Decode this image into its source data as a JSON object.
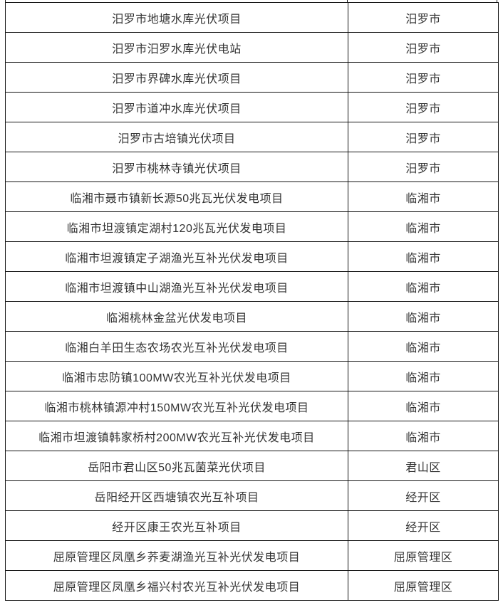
{
  "colors": {
    "background": "#ffffff",
    "border": "#151515",
    "text": "#333333"
  },
  "table": {
    "columns": [
      {
        "key": "project",
        "label": ""
      },
      {
        "key": "region",
        "label": ""
      }
    ],
    "rows": [
      {
        "project": "汨罗市地塘水库光伏项目",
        "region": "汨罗市"
      },
      {
        "project": "汨罗市汨罗水库光伏电站",
        "region": "汨罗市"
      },
      {
        "project": "汨罗市界碑水库光伏项目",
        "region": "汨罗市"
      },
      {
        "project": "汨罗市道冲水库光伏项目",
        "region": "汨罗市"
      },
      {
        "project": "汨罗市古培镇光伏项目",
        "region": "汨罗市"
      },
      {
        "project": "汨罗市桃林寺镇光伏项目",
        "region": "汨罗市"
      },
      {
        "project": "临湘市聂市镇新长源50兆瓦光伏发电项目",
        "region": "临湘市"
      },
      {
        "project": "临湘市坦渡镇定湖村120兆瓦光伏发电项目",
        "region": "临湘市"
      },
      {
        "project": "临湘市坦渡镇定子湖渔光互补光伏发电项目",
        "region": "临湘市"
      },
      {
        "project": "临湘市坦渡镇中山湖渔光互补光伏发电项目",
        "region": "临湘市"
      },
      {
        "project": "临湘桃林金盆光伏发电项目",
        "region": "临湘市"
      },
      {
        "project": "临湘白羊田生态农场农光互补光伏发电项目",
        "region": "临湘市"
      },
      {
        "project": "临湘市忠防镇100MW农光互补光伏发电项目",
        "region": "临湘市"
      },
      {
        "project": "临湘市桃林镇源冲村150MW农光互补光伏发电项目",
        "region": "临湘市"
      },
      {
        "project": "临湘市坦渡镇韩家桥村200MW农光互补光伏发电项目",
        "region": "临湘市"
      },
      {
        "project": "岳阳市君山区50兆瓦菌菜光伏项目",
        "region": "君山区"
      },
      {
        "project": "岳阳经开区西塘镇农光互补项目",
        "region": "经开区"
      },
      {
        "project": "经开区康王农光互补项目",
        "region": "经开区"
      },
      {
        "project": "屈原管理区凤凰乡荞麦湖渔光互补光伏发电项目",
        "region": "屈原管理区"
      },
      {
        "project": "屈原管理区凤凰乡福兴村农光互补光伏发电项目",
        "region": "屈原管理区"
      }
    ]
  }
}
